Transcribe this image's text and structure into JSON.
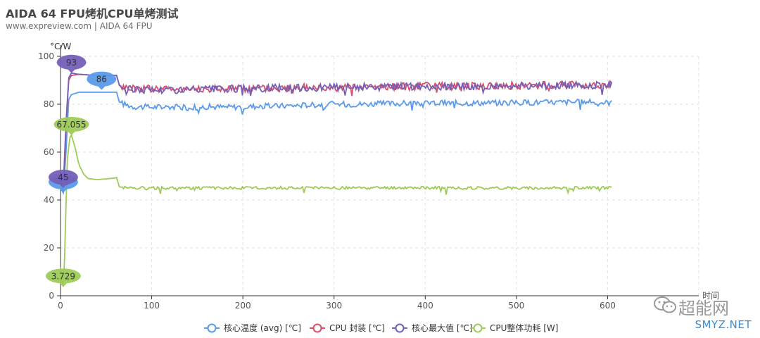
{
  "chart_data": {
    "type": "line",
    "title": "AIDA 64 FPU烤机CPU单烤测试",
    "subtitle": "www.expreview.com  | AIDA 64 FPU",
    "ylabel": "°C/W",
    "xlabel": "时间",
    "xlim": [
      0,
      700
    ],
    "ylim": [
      0,
      100
    ],
    "x_ticks": [
      0,
      100,
      200,
      300,
      400,
      500,
      600
    ],
    "y_ticks": [
      0,
      20,
      40,
      60,
      80,
      100
    ],
    "grid": true,
    "legend_position": "bottom",
    "series": [
      {
        "name": "核心温度 (avg) [℃]",
        "color": "#5b9bea",
        "points": [
          [
            0,
            45
          ],
          [
            3,
            43
          ],
          [
            6,
            60
          ],
          [
            9,
            82
          ],
          [
            12,
            84
          ],
          [
            20,
            85
          ],
          [
            40,
            85
          ],
          [
            62,
            85
          ],
          [
            64,
            81
          ],
          [
            70,
            80
          ],
          [
            80,
            79
          ],
          [
            100,
            78.8
          ],
          [
            120,
            79
          ],
          [
            140,
            78.5
          ],
          [
            160,
            79
          ],
          [
            180,
            78.8
          ],
          [
            200,
            79
          ],
          [
            230,
            79.2
          ],
          [
            260,
            79.5
          ],
          [
            290,
            80
          ],
          [
            320,
            80
          ],
          [
            350,
            80.2
          ],
          [
            380,
            80.4
          ],
          [
            410,
            80.5
          ],
          [
            440,
            80.5
          ],
          [
            470,
            80.6
          ],
          [
            500,
            80.7
          ],
          [
            530,
            80.8
          ],
          [
            560,
            80.9
          ],
          [
            580,
            80.8
          ],
          [
            600,
            80.7
          ],
          [
            605,
            80.6
          ]
        ],
        "callouts": [
          {
            "x": 45,
            "value": "86"
          },
          {
            "x": 3,
            "value": "43"
          }
        ]
      },
      {
        "name": "CPU 封装 [℃]",
        "color": "#d94d6a",
        "points": [
          [
            0,
            46
          ],
          [
            3,
            44
          ],
          [
            6,
            70
          ],
          [
            9,
            90
          ],
          [
            12,
            92
          ],
          [
            20,
            92.5
          ],
          [
            40,
            92
          ],
          [
            62,
            92
          ],
          [
            64,
            88
          ],
          [
            70,
            87
          ],
          [
            100,
            86.5
          ],
          [
            150,
            86.5
          ],
          [
            200,
            86.5
          ],
          [
            250,
            86.8
          ],
          [
            300,
            87
          ],
          [
            350,
            87.3
          ],
          [
            400,
            87.5
          ],
          [
            450,
            87.6
          ],
          [
            500,
            87.8
          ],
          [
            550,
            88
          ],
          [
            600,
            88.1
          ],
          [
            605,
            88
          ]
        ],
        "callouts": []
      },
      {
        "name": "核心最大值 [℃]",
        "color": "#7460b8",
        "points": [
          [
            0,
            46
          ],
          [
            3,
            45
          ],
          [
            6,
            72
          ],
          [
            9,
            91
          ],
          [
            12,
            93
          ],
          [
            20,
            92.5
          ],
          [
            40,
            92
          ],
          [
            62,
            92
          ],
          [
            64,
            88
          ],
          [
            70,
            86.5
          ],
          [
            100,
            86
          ],
          [
            150,
            86
          ],
          [
            200,
            86.5
          ],
          [
            250,
            86.8
          ],
          [
            300,
            87
          ],
          [
            350,
            87.2
          ],
          [
            400,
            87.3
          ],
          [
            450,
            87.5
          ],
          [
            500,
            87.6
          ],
          [
            550,
            87.8
          ],
          [
            600,
            88
          ],
          [
            605,
            88
          ]
        ],
        "callouts": [
          {
            "x": 12,
            "value": "93"
          },
          {
            "x": 3,
            "value": "45"
          }
        ]
      },
      {
        "name": "CPU整体功耗 [W]",
        "color": "#9ecb58",
        "points": [
          [
            0,
            12
          ],
          [
            2,
            5
          ],
          [
            3,
            3.729
          ],
          [
            5,
            20
          ],
          [
            7,
            55
          ],
          [
            10,
            66
          ],
          [
            12,
            67.055
          ],
          [
            16,
            62
          ],
          [
            20,
            55
          ],
          [
            25,
            51
          ],
          [
            30,
            49
          ],
          [
            40,
            48.5
          ],
          [
            50,
            48.8
          ],
          [
            60,
            49.2
          ],
          [
            62,
            49.5
          ],
          [
            64,
            45.5
          ],
          [
            70,
            45.2
          ],
          [
            100,
            45
          ],
          [
            150,
            45
          ],
          [
            200,
            45
          ],
          [
            250,
            45.1
          ],
          [
            300,
            45
          ],
          [
            350,
            45
          ],
          [
            400,
            45.1
          ],
          [
            450,
            45
          ],
          [
            500,
            45
          ],
          [
            550,
            45
          ],
          [
            600,
            45.1
          ],
          [
            605,
            45
          ]
        ],
        "callouts": [
          {
            "x": 12,
            "value": "67.055"
          },
          {
            "x": 3,
            "value": "3.729"
          }
        ]
      }
    ]
  },
  "watermark": {
    "logo_text": "超能网",
    "site_text": "SMYZ.NET"
  }
}
